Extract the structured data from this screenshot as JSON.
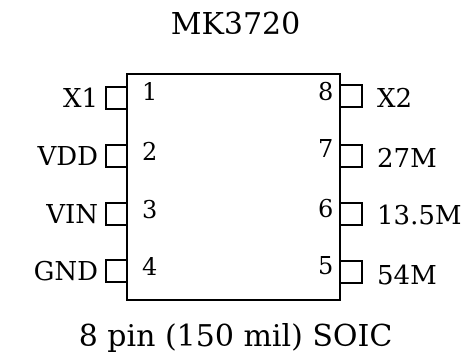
{
  "chip": {
    "part_number": "MK3720",
    "package": "8 pin (150 mil) SOIC",
    "left_pins": [
      {
        "number": "1",
        "signal": "X1"
      },
      {
        "number": "2",
        "signal": "VDD"
      },
      {
        "number": "3",
        "signal": "VIN"
      },
      {
        "number": "4",
        "signal": "GND"
      }
    ],
    "right_pins": [
      {
        "number": "8",
        "signal": "X2"
      },
      {
        "number": "7",
        "signal": "27M"
      },
      {
        "number": "6",
        "signal": "13.5M"
      },
      {
        "number": "5",
        "signal": "54M"
      }
    ]
  }
}
